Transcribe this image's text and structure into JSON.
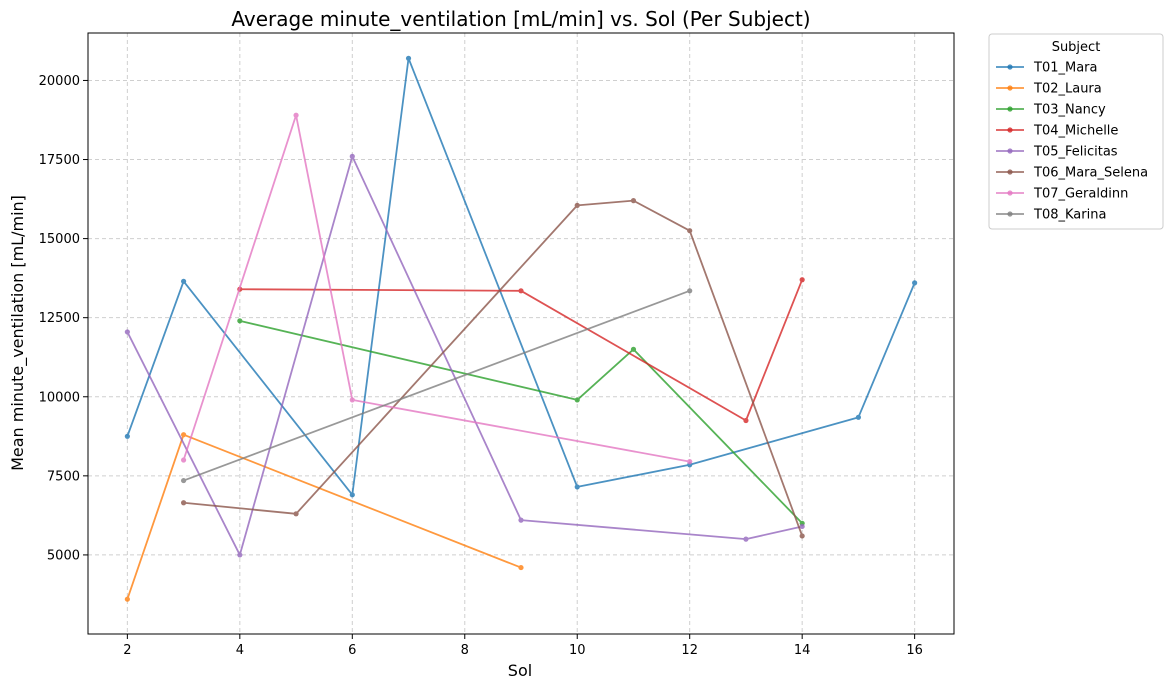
{
  "chart_data": {
    "type": "line",
    "title": "Average minute_ventilation [mL/min] vs. Sol (Per Subject)",
    "xlabel": "Sol",
    "ylabel": "Mean minute_ventilation [mL/min]",
    "xlim": [
      1.3,
      16.7
    ],
    "ylim": [
      2500,
      21500
    ],
    "xticks": [
      2,
      4,
      6,
      8,
      10,
      12,
      14,
      16
    ],
    "yticks": [
      5000,
      7500,
      10000,
      12500,
      15000,
      17500,
      20000
    ],
    "grid": true,
    "legend": {
      "title": "Subject",
      "placement": "outside-top-right"
    },
    "series": [
      {
        "name": "T01_Mara",
        "color": "#1f77b4",
        "x": [
          2,
          3,
          6,
          7,
          10,
          12,
          15,
          16
        ],
        "y": [
          8750,
          13650,
          6900,
          20700,
          7150,
          7850,
          9350,
          13600
        ]
      },
      {
        "name": "T02_Laura",
        "color": "#ff7f0e",
        "x": [
          2,
          3,
          9
        ],
        "y": [
          3600,
          8800,
          4600
        ]
      },
      {
        "name": "T03_Nancy",
        "color": "#2ca02c",
        "x": [
          4,
          10,
          11,
          14
        ],
        "y": [
          12400,
          9900,
          11500,
          6000
        ]
      },
      {
        "name": "T04_Michelle",
        "color": "#d62728",
        "x": [
          4,
          9,
          13,
          14
        ],
        "y": [
          13400,
          13350,
          9250,
          13700
        ]
      },
      {
        "name": "T05_Felicitas",
        "color": "#9467bd",
        "x": [
          2,
          4,
          6,
          9,
          13,
          14
        ],
        "y": [
          12050,
          5000,
          17600,
          6100,
          5500,
          5900
        ]
      },
      {
        "name": "T06_Mara_Selena",
        "color": "#8c564b",
        "x": [
          3,
          5,
          10,
          11,
          12,
          14
        ],
        "y": [
          6650,
          6300,
          16050,
          16200,
          15250,
          5600
        ]
      },
      {
        "name": "T07_Geraldinn",
        "color": "#e377c2",
        "x": [
          3,
          5,
          6,
          12
        ],
        "y": [
          8000,
          18900,
          9900,
          7950
        ]
      },
      {
        "name": "T08_Karina",
        "color": "#7f7f7f",
        "x": [
          3,
          12
        ],
        "y": [
          7350,
          13350
        ]
      }
    ]
  }
}
